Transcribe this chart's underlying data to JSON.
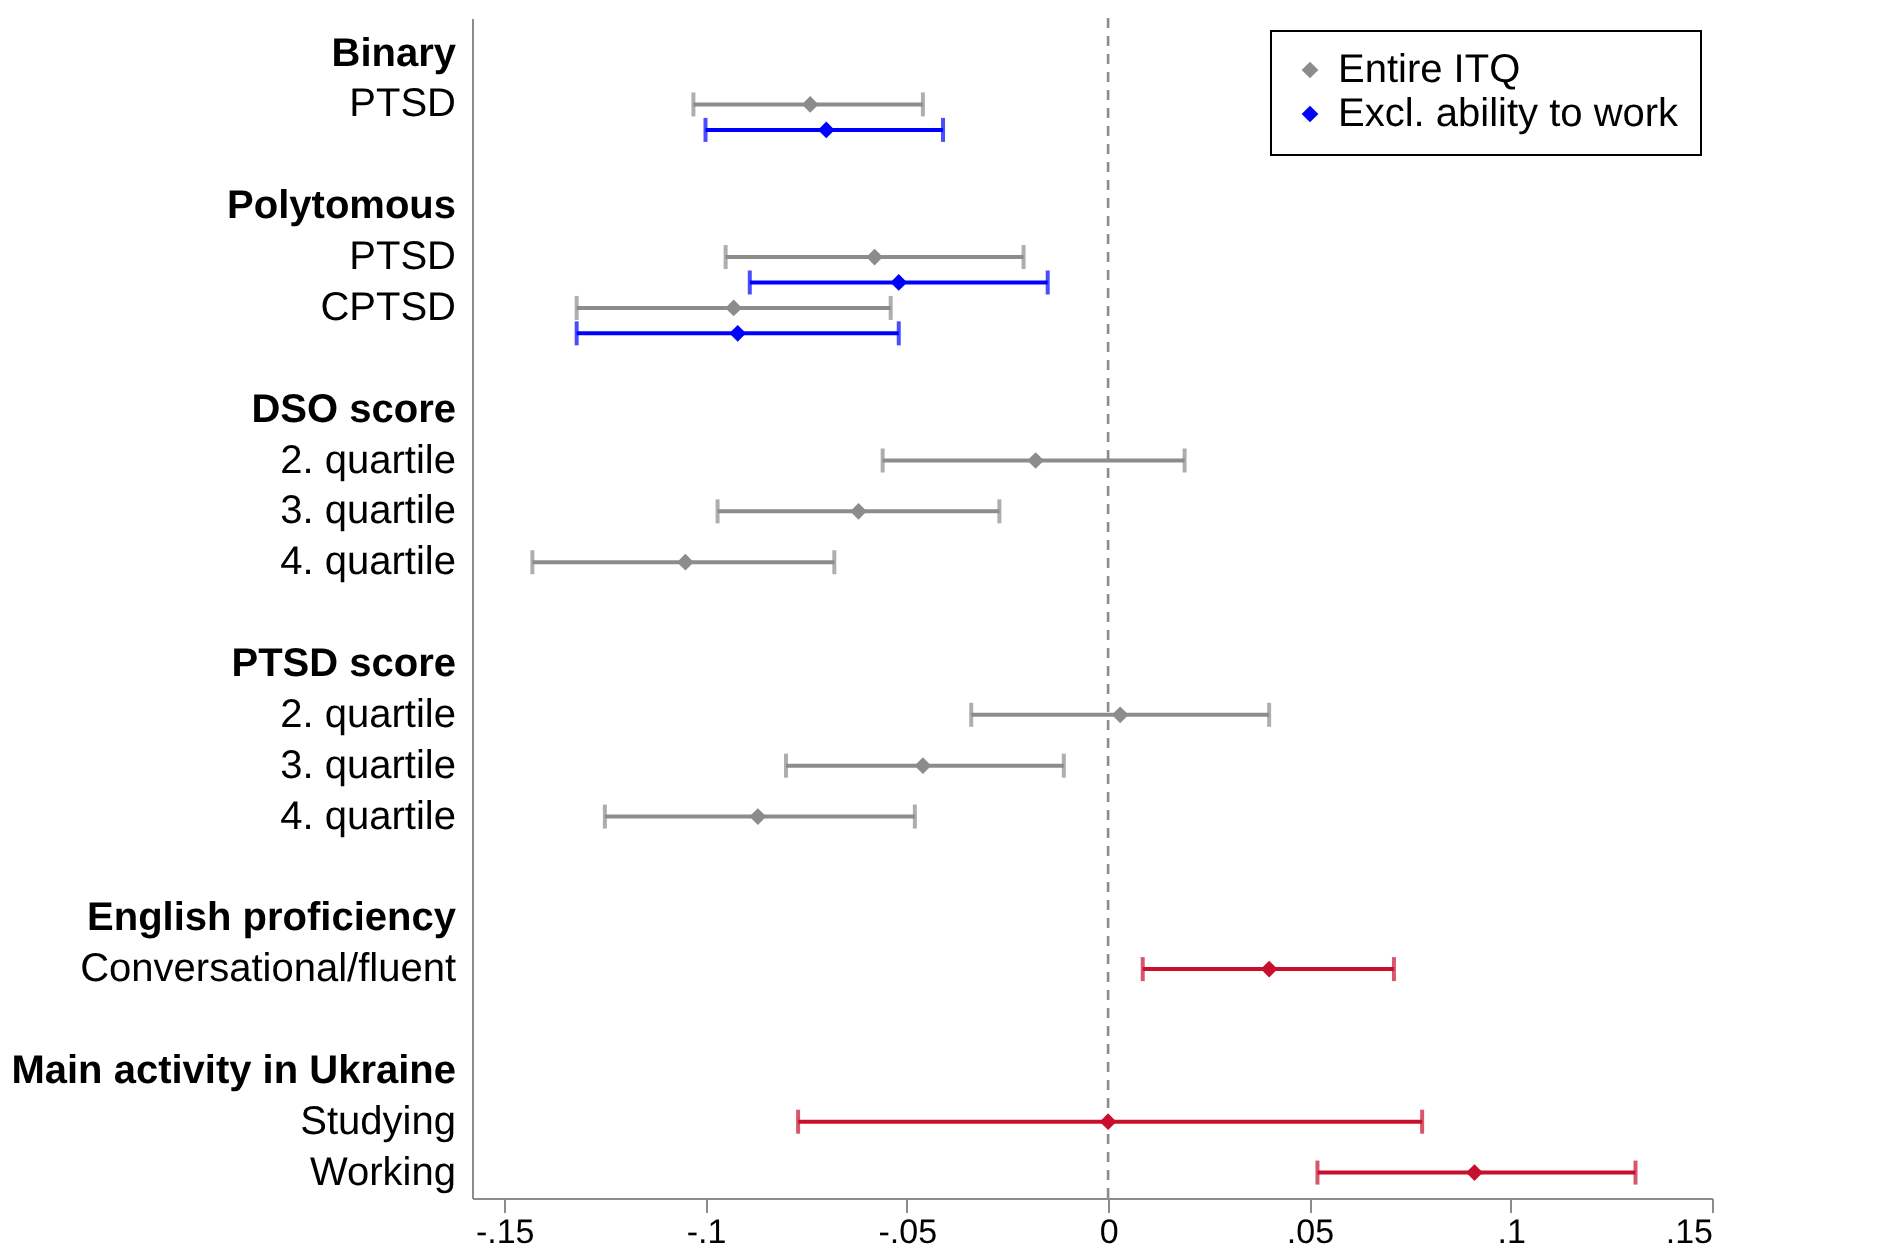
{
  "chart_data": {
    "type": "scatter",
    "orientation": "horizontal",
    "marker": "diamond",
    "grid": false,
    "legend": "top right",
    "categories": [
      "Binary",
      "PTSD",
      null,
      "Polytomous",
      "PTSD",
      "CPTSD",
      null,
      "DSO score",
      "2. quartile",
      "3. quartile",
      "4. quartile",
      null,
      "PTSD score",
      "2. quartile",
      "3. quartile",
      "4. quartile",
      null,
      "English proficiency",
      "Conversational/fluent",
      null,
      "Main activity in Ukraine",
      "Studying",
      "Working"
    ],
    "xlim": [
      -0.158,
      0.15
    ],
    "xticks": [
      {
        "value": -0.15,
        "label": "-.15"
      },
      {
        "value": -0.1,
        "label": "-.1"
      },
      {
        "value": -0.05,
        "label": "-.05"
      },
      0,
      {
        "value": 0.05,
        "label": ".05"
      },
      {
        "value": 0.1,
        "label": ".1"
      },
      {
        "value": 0.15,
        "label": ".15"
      }
    ],
    "ref_lines": [
      {
        "axis": "x",
        "value": 0,
        "label": null,
        "color": "#8c8c8c",
        "line_style": "dashed"
      }
    ],
    "series": [
      {
        "name": "Entire ITQ",
        "color": "#8c8c8c",
        "values": [
          null,
          -0.074,
          null,
          null,
          -0.058,
          -0.093,
          null,
          null,
          -0.018,
          -0.062,
          -0.105,
          null,
          null,
          0.003,
          -0.046,
          -0.087,
          null,
          null,
          null,
          null,
          null,
          null,
          null
        ],
        "errors": [
          null,
          [
            -0.103,
            -0.046
          ],
          null,
          null,
          [
            -0.095,
            -0.021
          ],
          [
            -0.132,
            -0.054
          ],
          null,
          null,
          [
            -0.056,
            0.019
          ],
          [
            -0.097,
            -0.027
          ],
          [
            -0.143,
            -0.068
          ],
          null,
          null,
          [
            -0.034,
            0.04
          ],
          [
            -0.08,
            -0.011
          ],
          [
            -0.125,
            -0.048
          ],
          null,
          null,
          null,
          null,
          null,
          null,
          null
        ]
      },
      {
        "name": "Excl. ability to work",
        "color": "#0000ff",
        "values": [
          null,
          -0.07,
          null,
          null,
          -0.052,
          -0.092,
          null,
          null,
          null,
          null,
          null,
          null,
          null,
          null,
          null,
          null,
          null,
          null,
          null,
          null,
          null,
          null,
          null
        ],
        "errors": [
          null,
          [
            -0.1,
            -0.041
          ],
          null,
          null,
          [
            -0.089,
            -0.015
          ],
          [
            -0.132,
            -0.052
          ],
          null,
          null,
          null,
          null,
          null,
          null,
          null,
          null,
          null,
          null,
          null,
          null,
          null,
          null,
          null,
          null,
          null
        ]
      },
      {
        "color": "#c8102e",
        "values": [
          null,
          null,
          null,
          null,
          null,
          null,
          null,
          null,
          null,
          null,
          null,
          null,
          null,
          null,
          null,
          null,
          null,
          null,
          0.04,
          null,
          null,
          0.0,
          0.091
        ],
        "errors": [
          null,
          null,
          null,
          null,
          null,
          null,
          null,
          null,
          null,
          null,
          null,
          null,
          null,
          null,
          null,
          null,
          null,
          null,
          [
            0.0086,
            0.071
          ],
          null,
          null,
          [
            -0.077,
            0.078
          ],
          [
            0.052,
            0.131
          ]
        ]
      }
    ]
  }
}
